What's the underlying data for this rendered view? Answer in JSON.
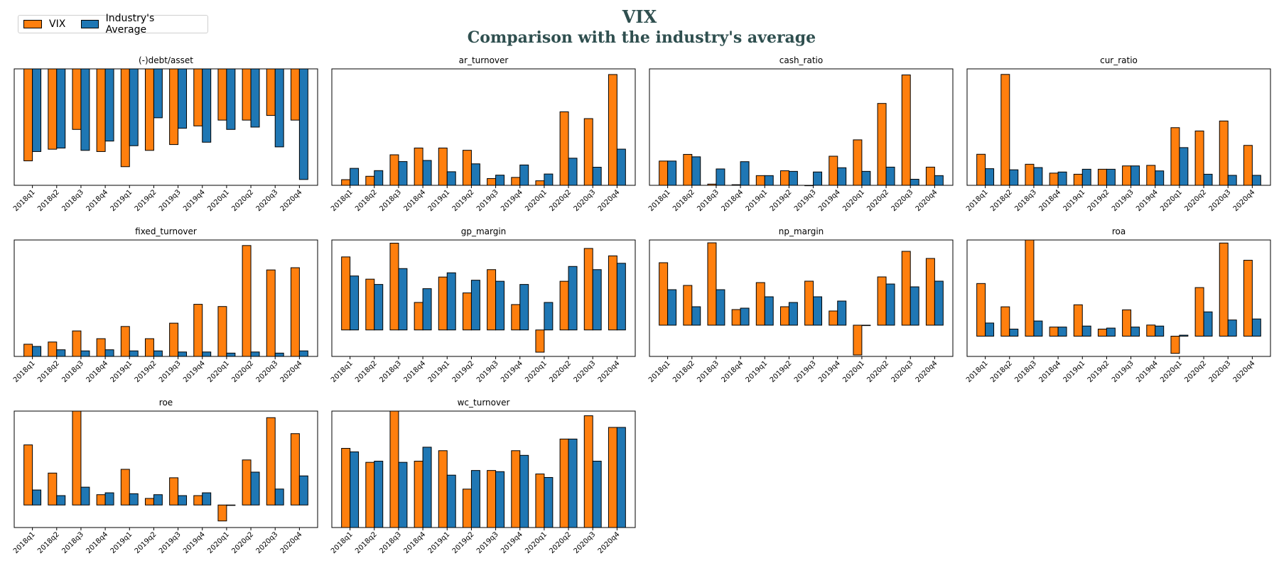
{
  "title": "VIX",
  "subtitle": "Comparison with the industry's average",
  "legend": {
    "items": [
      {
        "label": "VIX",
        "color": "#ff7f0e"
      },
      {
        "label": "Industry's Average",
        "color": "#1f77b4"
      }
    ]
  },
  "colors": {
    "company": "#ff7f0e",
    "industry": "#1f77b4"
  },
  "chart_data": [
    {
      "type": "bar",
      "title": "(-)debt/asset",
      "categories": [
        "2018q1",
        "2018q2",
        "2018q3",
        "2018q4",
        "2019q1",
        "2019q2",
        "2019q3",
        "2019q4",
        "2020q1",
        "2020q2",
        "2020q3",
        "2020q4"
      ],
      "series": [
        {
          "name": "VIX",
          "values": [
            -0.79,
            -0.69,
            -0.52,
            -0.71,
            -0.84,
            -0.7,
            -0.65,
            -0.49,
            -0.44,
            -0.44,
            -0.4,
            -0.44
          ]
        },
        {
          "name": "Industry's Average",
          "values": [
            -0.71,
            -0.68,
            -0.7,
            -0.62,
            -0.66,
            -0.42,
            -0.51,
            -0.63,
            -0.52,
            -0.5,
            -0.67,
            -0.95
          ]
        }
      ],
      "ylim": [
        -1.0,
        0.0
      ]
    },
    {
      "type": "bar",
      "title": "ar_turnover",
      "categories": [
        "2018q1",
        "2018q2",
        "2018q3",
        "2018q4",
        "2019q1",
        "2019q2",
        "2019q3",
        "2019q4",
        "2020q1",
        "2020q2",
        "2020q3",
        "2020q4"
      ],
      "series": [
        {
          "name": "VIX",
          "values": [
            5,
            8,
            27,
            33,
            33,
            31,
            6,
            7,
            4,
            65,
            59,
            98
          ]
        },
        {
          "name": "Industry's Average",
          "values": [
            15,
            13,
            21,
            22,
            12,
            19,
            9,
            18,
            10,
            24,
            16,
            32
          ]
        }
      ],
      "ylim": [
        0,
        103
      ]
    },
    {
      "type": "bar",
      "title": "cash_ratio",
      "categories": [
        "2018q1",
        "2018q2",
        "2018q3",
        "2018q4",
        "2019q1",
        "2019q2",
        "2019q3",
        "2019q4",
        "2020q1",
        "2020q2",
        "2020q3",
        "2020q4"
      ],
      "series": [
        {
          "name": "VIX",
          "values": [
            0.4,
            0.51,
            0.02,
            0.01,
            0.16,
            0.24,
            0.0,
            0.48,
            0.75,
            1.35,
            1.82,
            0.3
          ]
        },
        {
          "name": "Industry's Average",
          "values": [
            0.4,
            0.47,
            0.27,
            0.39,
            0.16,
            0.23,
            0.22,
            0.29,
            0.23,
            0.3,
            0.1,
            0.16
          ]
        }
      ],
      "ylim": [
        0,
        1.92
      ]
    },
    {
      "type": "bar",
      "title": "cur_ratio",
      "categories": [
        "2018q1",
        "2018q2",
        "2018q3",
        "2018q4",
        "2019q1",
        "2019q2",
        "2019q3",
        "2019q4",
        "2020q1",
        "2020q2",
        "2020q3",
        "2020q4"
      ],
      "series": [
        {
          "name": "VIX",
          "values": [
            2.8,
            10.0,
            1.9,
            1.1,
            1.0,
            1.45,
            1.75,
            1.8,
            5.2,
            4.9,
            5.8,
            3.6
          ]
        },
        {
          "name": "Industry's Average",
          "values": [
            1.5,
            1.4,
            1.6,
            1.2,
            1.45,
            1.45,
            1.75,
            1.3,
            3.4,
            1.0,
            0.9,
            0.9
          ]
        }
      ],
      "ylim": [
        0,
        10.5
      ]
    },
    {
      "type": "bar",
      "title": "fixed_turnover",
      "categories": [
        "2018q1",
        "2018q2",
        "2018q3",
        "2018q4",
        "2019q1",
        "2019q2",
        "2019q3",
        "2019q4",
        "2020q1",
        "2020q2",
        "2020q3",
        "2020q4"
      ],
      "series": [
        {
          "name": "VIX",
          "values": [
            11,
            13,
            23,
            16,
            27,
            16,
            30,
            47,
            45,
            100,
            78,
            80
          ]
        },
        {
          "name": "Industry's Average",
          "values": [
            9,
            6,
            5,
            6,
            5,
            5,
            4,
            4,
            3,
            4,
            3,
            5
          ]
        }
      ],
      "ylim": [
        0,
        105
      ]
    },
    {
      "type": "bar",
      "title": "gp_margin",
      "categories": [
        "2018q1",
        "2018q2",
        "2018q3",
        "2018q4",
        "2019q1",
        "2019q2",
        "2019q3",
        "2019q4",
        "2020q1",
        "2020q2",
        "2020q3",
        "2020q4"
      ],
      "series": [
        {
          "name": "VIX",
          "values": [
            0.69,
            0.48,
            0.82,
            0.26,
            0.5,
            0.35,
            0.57,
            0.24,
            -0.21,
            0.46,
            0.77,
            0.7
          ]
        },
        {
          "name": "Industry's Average",
          "values": [
            0.51,
            0.43,
            0.58,
            0.39,
            0.54,
            0.47,
            0.46,
            0.43,
            0.26,
            0.6,
            0.57,
            0.63
          ]
        }
      ],
      "ylim": [
        -0.25,
        0.85
      ]
    },
    {
      "type": "bar",
      "title": "np_margin",
      "categories": [
        "2018q1",
        "2018q2",
        "2018q3",
        "2018q4",
        "2019q1",
        "2019q2",
        "2019q3",
        "2019q4",
        "2020q1",
        "2020q2",
        "2020q3",
        "2020q4"
      ],
      "series": [
        {
          "name": "VIX",
          "values": [
            0.44,
            0.28,
            0.58,
            0.11,
            0.3,
            0.13,
            0.31,
            0.1,
            -0.21,
            0.34,
            0.52,
            0.47
          ]
        },
        {
          "name": "Industry's Average",
          "values": [
            0.25,
            0.13,
            0.25,
            0.12,
            0.2,
            0.16,
            0.2,
            0.17,
            0.0,
            0.29,
            0.27,
            0.31
          ]
        }
      ],
      "ylim": [
        -0.22,
        0.6
      ]
    },
    {
      "type": "bar",
      "title": "roa",
      "categories": [
        "2018q1",
        "2018q2",
        "2018q3",
        "2018q4",
        "2019q1",
        "2019q2",
        "2019q3",
        "2019q4",
        "2020q1",
        "2020q2",
        "2020q3",
        "2020q4"
      ],
      "series": [
        {
          "name": "VIX",
          "values": [
            0.52,
            0.29,
            0.95,
            0.09,
            0.31,
            0.07,
            0.26,
            0.11,
            -0.17,
            0.48,
            0.92,
            0.75
          ]
        },
        {
          "name": "Industry's Average",
          "values": [
            0.13,
            0.07,
            0.15,
            0.09,
            0.1,
            0.08,
            0.09,
            0.1,
            0.01,
            0.24,
            0.16,
            0.17
          ]
        }
      ],
      "ylim": [
        -0.2,
        0.95
      ]
    },
    {
      "type": "bar",
      "title": "roe",
      "categories": [
        "2018q1",
        "2018q2",
        "2018q3",
        "2018q4",
        "2019q1",
        "2019q2",
        "2019q3",
        "2019q4",
        "2020q1",
        "2020q2",
        "2020q3",
        "2020q4"
      ],
      "series": [
        {
          "name": "VIX",
          "values": [
            0.64,
            0.34,
            1.0,
            0.11,
            0.38,
            0.07,
            0.29,
            0.1,
            -0.17,
            0.48,
            0.93,
            0.76
          ]
        },
        {
          "name": "Industry's Average",
          "values": [
            0.16,
            0.1,
            0.19,
            0.13,
            0.12,
            0.11,
            0.1,
            0.13,
            0.0,
            0.35,
            0.17,
            0.31
          ]
        }
      ],
      "ylim": [
        -0.24,
        1.0
      ]
    },
    {
      "type": "bar",
      "title": "wc_turnover",
      "categories": [
        "2018q1",
        "2018q2",
        "2018q3",
        "2018q4",
        "2019q1",
        "2019q2",
        "2019q3",
        "2019q4",
        "2020q1",
        "2020q2",
        "2020q3",
        "2020q4"
      ],
      "series": [
        {
          "name": "VIX",
          "values": [
            6.8,
            5.6,
            10.0,
            5.7,
            6.6,
            3.3,
            4.9,
            6.6,
            4.6,
            7.6,
            9.6,
            8.6
          ]
        },
        {
          "name": "Industry's Average",
          "values": [
            6.5,
            5.7,
            5.6,
            6.9,
            4.5,
            4.9,
            4.8,
            6.2,
            4.3,
            7.6,
            5.7,
            8.6
          ]
        }
      ],
      "ylim": [
        0,
        10.0
      ]
    }
  ]
}
